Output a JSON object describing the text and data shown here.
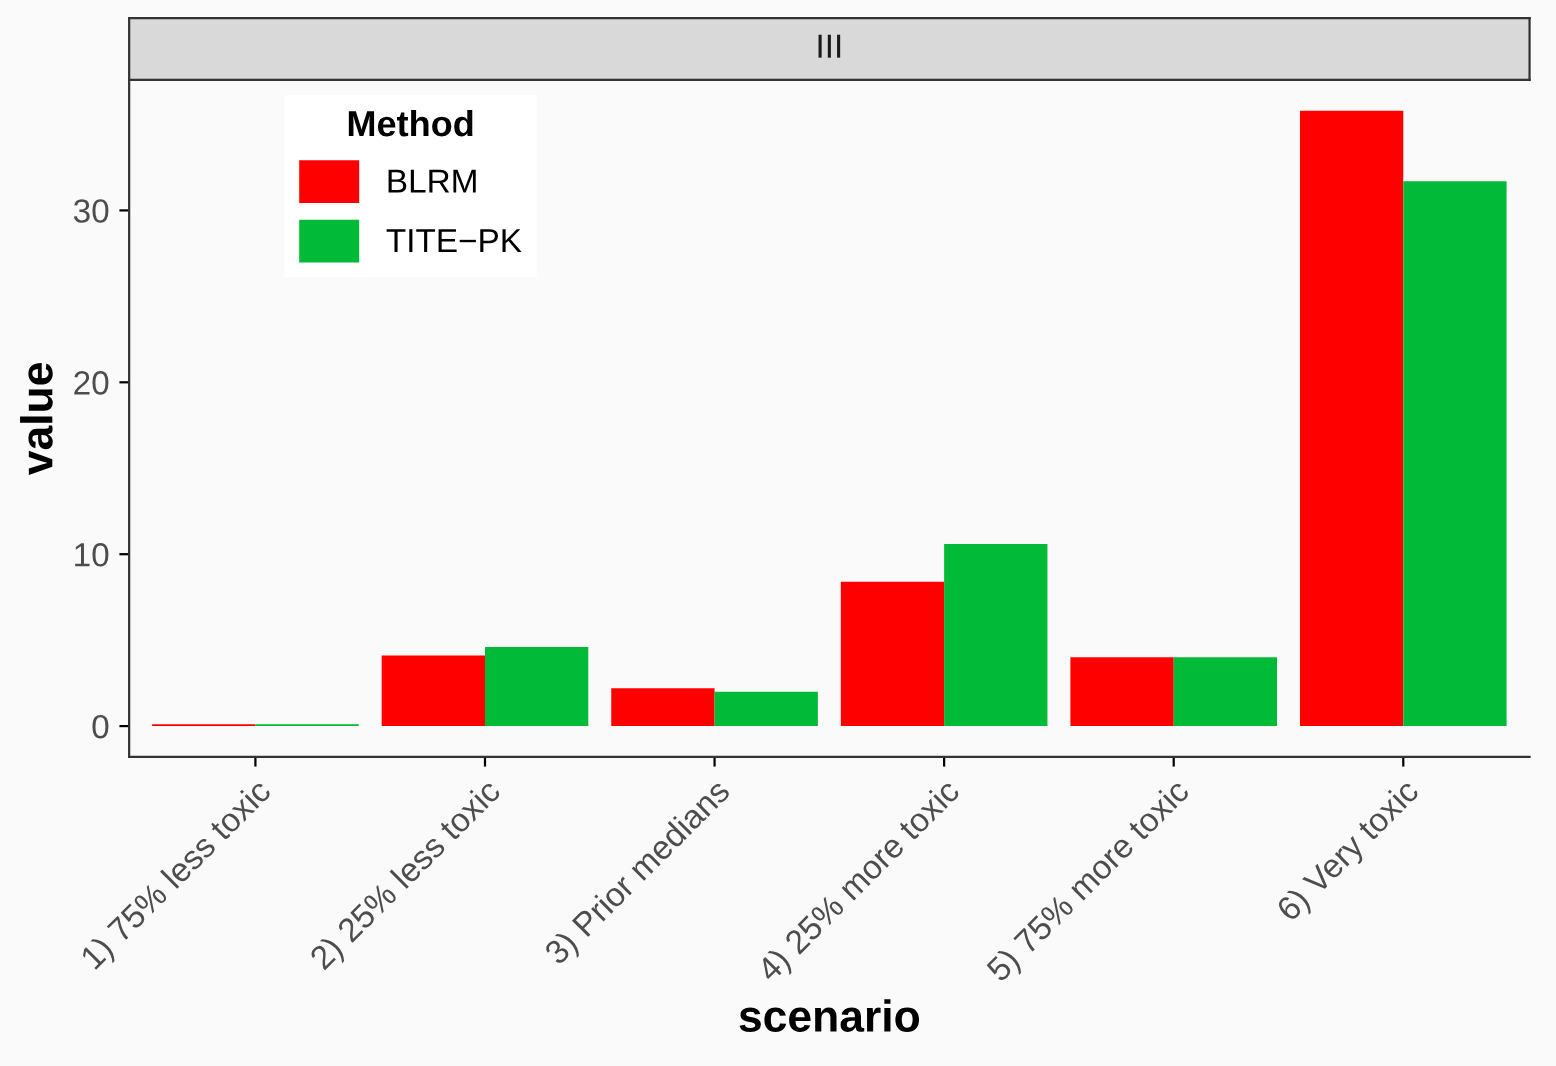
{
  "chart_data": {
    "type": "bar",
    "title": "III",
    "xlabel": "scenario",
    "ylabel": "value",
    "categories": [
      "1) 75% less toxic",
      "2) 25% less toxic",
      "3) Prior medians",
      "4) 25% more toxic",
      "5) 75% more toxic",
      "6) Very toxic"
    ],
    "series": [
      {
        "name": "BLRM",
        "color": "#ff0000",
        "values": [
          0.1,
          4.1,
          2.2,
          8.4,
          4.0,
          35.8
        ]
      },
      {
        "name": "TITE−PK",
        "color": "#00ba38",
        "values": [
          0.1,
          4.6,
          2.0,
          10.6,
          4.0,
          31.7
        ]
      }
    ],
    "legend_title": "Method",
    "legend": "top left",
    "grid": false,
    "ylim": [
      -1.79,
      37.59
    ],
    "yticks": [
      0,
      10,
      20,
      30
    ]
  }
}
